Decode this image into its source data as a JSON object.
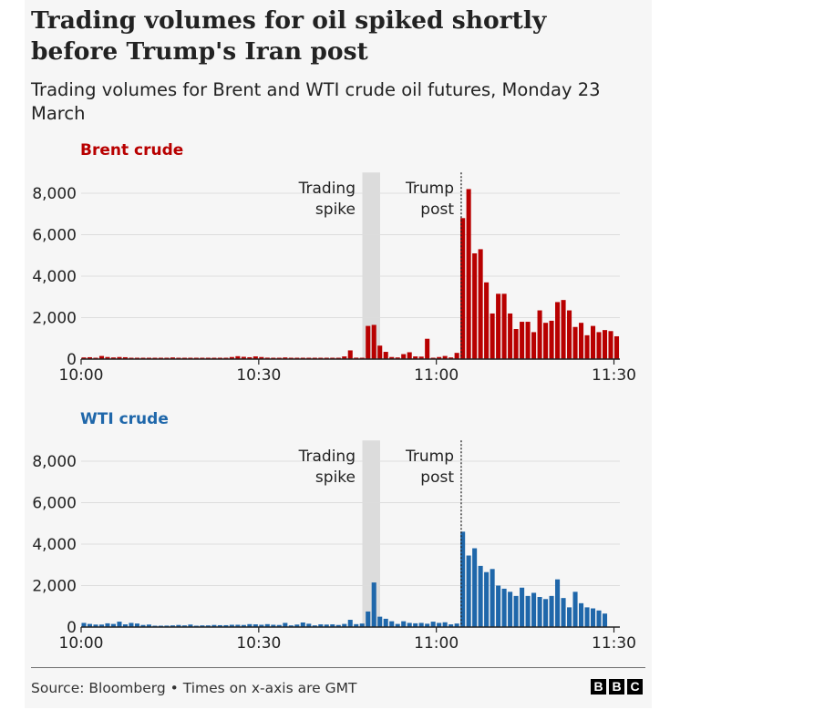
{
  "title": "Trading volumes for oil spiked shortly before Trump's Iran post",
  "subtitle": "Trading volumes for Brent and WTI crude oil futures, Monday 23 March",
  "source": "Source: Bloomberg • Times on x-axis are GMT",
  "logo": [
    "B",
    "B",
    "C"
  ],
  "chart_data": [
    {
      "type": "bar",
      "title": "Brent crude",
      "color": "#b80000",
      "xlabel": "",
      "ylabel": "",
      "x_tick_labels": [
        "10:00",
        "10:30",
        "11:00",
        "11:30"
      ],
      "y_tick_labels": [
        "0",
        "2,000",
        "4,000",
        "6,000",
        "8,000"
      ],
      "y_ticks": [
        0,
        2000,
        4000,
        6000,
        8000
      ],
      "ylim": [
        0,
        8400
      ],
      "x_range_minutes": [
        0,
        91
      ],
      "annotations": {
        "spike_label": [
          "Trading",
          "spike"
        ],
        "spike_band_minutes": [
          47.5,
          50.5
        ],
        "trump_label": [
          "Trump",
          "post"
        ],
        "trump_line_minutes": 64.2
      },
      "x_minutes": [
        0,
        1,
        2,
        3,
        4,
        5,
        6,
        7,
        8,
        9,
        10,
        11,
        12,
        13,
        14,
        15,
        16,
        17,
        18,
        19,
        20,
        21,
        22,
        23,
        24,
        25,
        26,
        27,
        28,
        29,
        30,
        31,
        32,
        33,
        34,
        35,
        36,
        37,
        38,
        39,
        40,
        41,
        42,
        43,
        44,
        45,
        46,
        47,
        48,
        49,
        50,
        51,
        52,
        53,
        54,
        55,
        56,
        57,
        58,
        59,
        60,
        61,
        62,
        63,
        64,
        65,
        66,
        67,
        68,
        69,
        70,
        71,
        72,
        73,
        74,
        75,
        76,
        77,
        78,
        79,
        80,
        81,
        82,
        83,
        84,
        85,
        86,
        87,
        88,
        89,
        90
      ],
      "values": [
        80,
        90,
        40,
        150,
        100,
        80,
        100,
        90,
        30,
        50,
        30,
        20,
        30,
        50,
        40,
        80,
        40,
        30,
        30,
        60,
        30,
        20,
        40,
        60,
        30,
        100,
        140,
        110,
        90,
        130,
        100,
        70,
        60,
        30,
        80,
        40,
        50,
        60,
        30,
        40,
        50,
        60,
        40,
        40,
        130,
        420,
        70,
        30,
        1600,
        1650,
        650,
        350,
        100,
        80,
        240,
        330,
        130,
        120,
        980,
        50,
        100,
        150,
        80,
        300,
        6800,
        8200,
        5100,
        5300,
        3700,
        2200,
        3150,
        3150,
        2200,
        1450,
        1800,
        1800,
        1300,
        2350,
        1750,
        1850,
        2750,
        2850,
        2350,
        1550,
        1750,
        1150,
        1600,
        1300,
        1400,
        1350,
        1100
      ]
    },
    {
      "type": "bar",
      "title": "WTI crude",
      "color": "#1f67aa",
      "xlabel": "",
      "ylabel": "",
      "x_tick_labels": [
        "10:00",
        "10:30",
        "11:00",
        "11:30"
      ],
      "y_tick_labels": [
        "0",
        "2,000",
        "4,000",
        "6,000",
        "8,000"
      ],
      "y_ticks": [
        0,
        2000,
        4000,
        6000,
        8000
      ],
      "ylim": [
        0,
        8400
      ],
      "x_range_minutes": [
        0,
        91
      ],
      "annotations": {
        "spike_label": [
          "Trading",
          "spike"
        ],
        "spike_band_minutes": [
          47.5,
          50.5
        ],
        "trump_label": [
          "Trump",
          "post"
        ],
        "trump_line_minutes": 64.2
      },
      "x_minutes": [
        0,
        1,
        2,
        3,
        4,
        5,
        6,
        7,
        8,
        9,
        10,
        11,
        12,
        13,
        14,
        15,
        16,
        17,
        18,
        19,
        20,
        21,
        22,
        23,
        24,
        25,
        26,
        27,
        28,
        29,
        30,
        31,
        32,
        33,
        34,
        35,
        36,
        37,
        38,
        39,
        40,
        41,
        42,
        43,
        44,
        45,
        46,
        47,
        48,
        49,
        50,
        51,
        52,
        53,
        54,
        55,
        56,
        57,
        58,
        59,
        60,
        61,
        62,
        63,
        64,
        65,
        66,
        67,
        68,
        69,
        70,
        71,
        72,
        73,
        74,
        75,
        76,
        77,
        78,
        79,
        80,
        81,
        82,
        83,
        84,
        85,
        86,
        87,
        88,
        89,
        90
      ],
      "values": [
        200,
        150,
        120,
        120,
        180,
        150,
        260,
        130,
        200,
        170,
        100,
        120,
        60,
        60,
        70,
        80,
        100,
        80,
        120,
        60,
        80,
        80,
        100,
        90,
        90,
        110,
        110,
        100,
        140,
        130,
        110,
        140,
        110,
        100,
        200,
        80,
        120,
        220,
        160,
        80,
        130,
        120,
        130,
        100,
        150,
        350,
        140,
        170,
        750,
        2150,
        500,
        400,
        280,
        150,
        280,
        200,
        180,
        200,
        160,
        260,
        200,
        230,
        130,
        170,
        4600,
        3450,
        3800,
        2950,
        2650,
        2800,
        2000,
        1850,
        1700,
        1500,
        1900,
        1500,
        1650,
        1450,
        1350,
        1500,
        2300,
        1400,
        950,
        1700,
        1150,
        950,
        900,
        800,
        650,
        0,
        0
      ]
    }
  ]
}
